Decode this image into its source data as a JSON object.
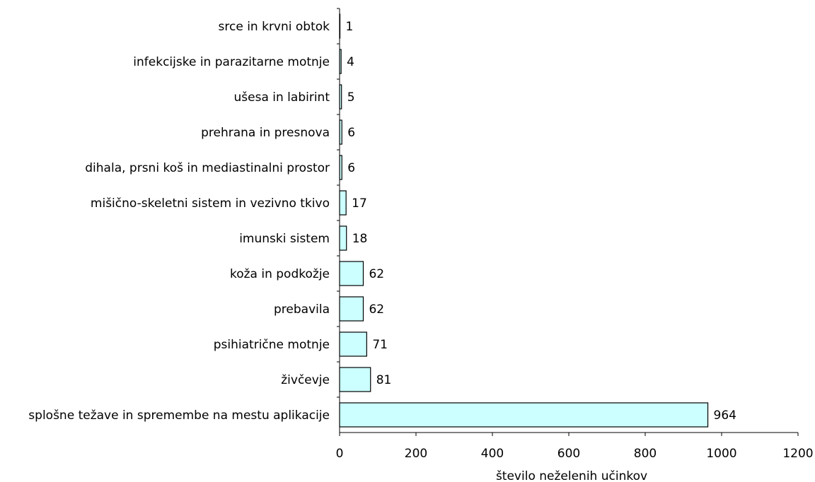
{
  "chart_data": {
    "type": "bar",
    "orientation": "horizontal",
    "categories": [
      "srce in krvni obtok",
      "infekcijske in parazitarne motnje",
      "ušesa in labirint",
      "prehrana in presnova",
      "dihala, prsni koš in mediastinalni prostor",
      "mišično-skeletni sistem in vezivno tkivo",
      "imunski sistem",
      "koža in podkožje",
      "prebavila",
      "psihiatrične motnje",
      "živčevje",
      "splošne težave in spremembe na mestu aplikacije"
    ],
    "values": [
      1,
      4,
      5,
      6,
      6,
      17,
      18,
      62,
      62,
      71,
      81,
      964
    ],
    "title": "",
    "xlabel": "število neželenih učinkov",
    "ylabel": "",
    "xlim": [
      0,
      1200
    ],
    "xticks": [
      0,
      200,
      400,
      600,
      800,
      1000,
      1200
    ],
    "grid": false,
    "legend": "none",
    "bar_color": "#ccffff",
    "edge_color": "#000000"
  }
}
